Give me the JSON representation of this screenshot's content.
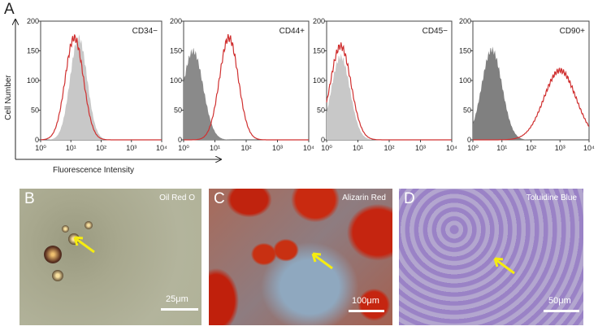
{
  "figure": {
    "panel_a_letter": "A",
    "y_axis_label": "Cell Number",
    "x_axis_label": "Fluorescence Intensity"
  },
  "chart_data": [
    {
      "type": "area",
      "title": "CD34−",
      "xscale": "log",
      "xlim": [
        1,
        10000
      ],
      "ylim": [
        0,
        200
      ],
      "x_ticks": [
        "10⁰",
        "10¹",
        "10²",
        "10³",
        "10⁴"
      ],
      "y_ticks": [
        "0",
        "50",
        "100",
        "150",
        "200"
      ],
      "series": [
        {
          "role": "control",
          "fill": "#c8c8c8",
          "peak_x": 18,
          "peak_y": 172,
          "width_decades": 0.28
        },
        {
          "role": "marker",
          "stroke": "#d03030",
          "peak_x": 13,
          "peak_y": 172,
          "width_decades": 0.3
        }
      ]
    },
    {
      "type": "area",
      "title": "CD44+",
      "xscale": "log",
      "xlim": [
        1,
        10000
      ],
      "ylim": [
        0,
        200
      ],
      "x_ticks": [
        "10⁰",
        "10¹",
        "10²",
        "10³",
        "10⁴"
      ],
      "y_ticks": [
        "0",
        "50",
        "100",
        "150",
        "200"
      ],
      "series": [
        {
          "role": "control",
          "fill": "#8a8a8a",
          "peak_x": 2,
          "peak_y": 150,
          "width_decades": 0.32
        },
        {
          "role": "marker",
          "stroke": "#d03030",
          "peak_x": 28,
          "peak_y": 172,
          "width_decades": 0.3
        }
      ]
    },
    {
      "type": "area",
      "title": "CD45−",
      "xscale": "log",
      "xlim": [
        1,
        10000
      ],
      "ylim": [
        0,
        200
      ],
      "x_ticks": [
        "10⁰",
        "10¹",
        "10²",
        "10³",
        "10⁴"
      ],
      "y_ticks": [
        "0",
        "50",
        "100",
        "150",
        "200"
      ],
      "series": [
        {
          "role": "control",
          "fill": "#c8c8c8",
          "peak_x": 2.8,
          "peak_y": 140,
          "width_decades": 0.3
        },
        {
          "role": "marker",
          "stroke": "#d03030",
          "peak_x": 2.8,
          "peak_y": 158,
          "width_decades": 0.33
        }
      ]
    },
    {
      "type": "area",
      "title": "CD90+",
      "xscale": "log",
      "xlim": [
        1,
        10000
      ],
      "ylim": [
        0,
        200
      ],
      "x_ticks": [
        "10⁰",
        "10¹",
        "10²",
        "10³",
        "10⁴"
      ],
      "y_ticks": [
        "0",
        "50",
        "100",
        "150",
        "200"
      ],
      "series": [
        {
          "role": "control",
          "fill": "#808080",
          "peak_x": 4.5,
          "peak_y": 152,
          "width_decades": 0.35
        },
        {
          "role": "marker",
          "stroke": "#d03030",
          "peak_x": 1000,
          "peak_y": 117,
          "width_decades": 0.55
        }
      ]
    }
  ],
  "photos": [
    {
      "letter": "B",
      "stain": "Oil Red O",
      "scale": "25μm"
    },
    {
      "letter": "C",
      "stain": "Alizarin Red",
      "scale": "100μm"
    },
    {
      "letter": "D",
      "stain": "Toluidine Blue",
      "scale": "50μm"
    }
  ],
  "colors": {
    "arrow": "#f5ec10",
    "marker_line": "#d03030"
  }
}
